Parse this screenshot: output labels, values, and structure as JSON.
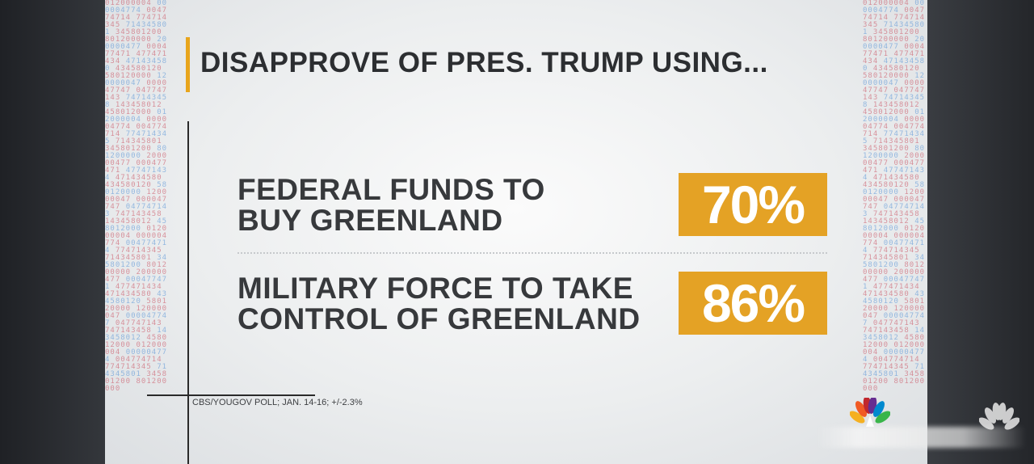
{
  "header": {
    "title": "DISAPPROVE OF PRES. TRUMP USING..."
  },
  "poll_items": [
    {
      "label_line1": "FEDERAL FUNDS TO",
      "label_line2": "BUY GREENLAND",
      "value": "70%",
      "percent": 70
    },
    {
      "label_line1": "MILITARY FORCE TO TAKE",
      "label_line2": "CONTROL OF GREENLAND",
      "value": "86%",
      "percent": 86
    }
  ],
  "footer": {
    "source": "CBS/YOUGOV POLL; JAN. 14-16; +/-2.3%"
  },
  "colors": {
    "accent": "#e4a225",
    "title_text": "#2c2e31",
    "digit_red": "#c9495a",
    "digit_blue": "#4f8fd6"
  },
  "icons": {
    "network_logo": "nbc-peacock-icon"
  }
}
